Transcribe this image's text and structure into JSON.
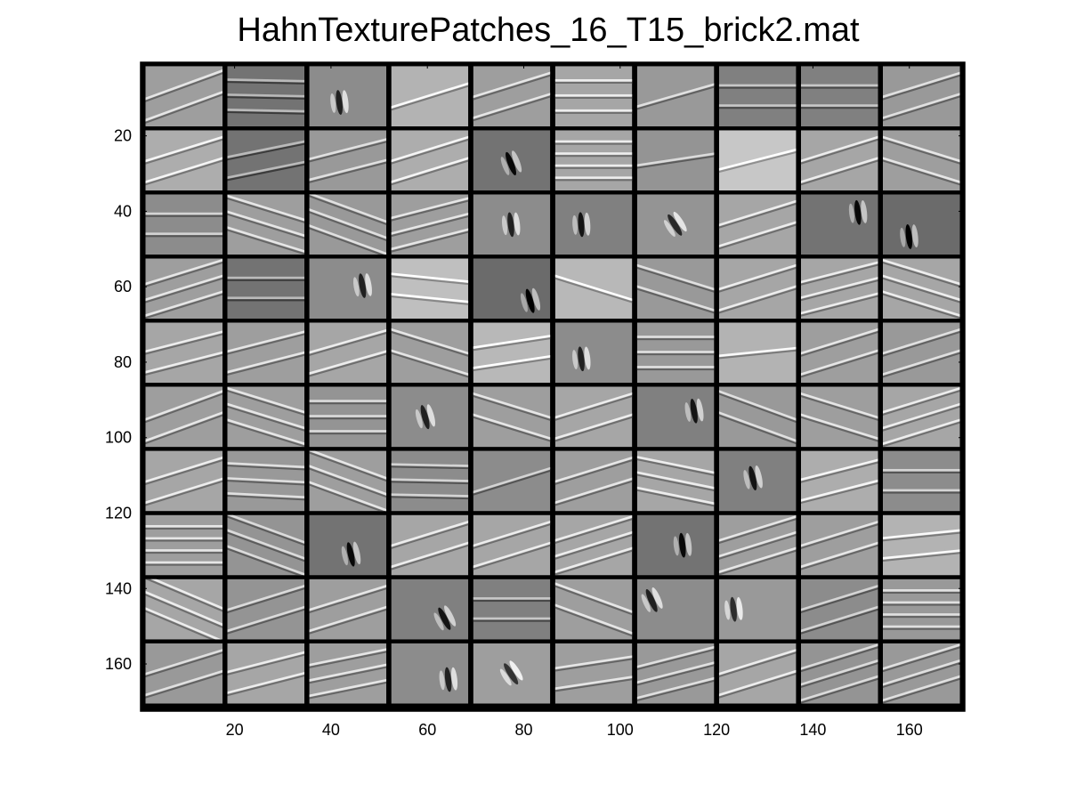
{
  "chart_data": {
    "type": "heatmap",
    "title": "HahnTexturePatches_16_T15_brick2.mat",
    "xlabel": "",
    "ylabel": "",
    "xlim": [
      0.5,
      171.5
    ],
    "ylim": [
      0.5,
      172.5
    ],
    "y_reversed": true,
    "grid": false,
    "legend": "none",
    "colormap": "gray",
    "patch_grid": {
      "rows": 10,
      "cols": 10,
      "patch_width": 16,
      "patch_height": 16,
      "separator": 1
    },
    "x_ticks": [
      20,
      40,
      60,
      80,
      100,
      120,
      140,
      160
    ],
    "x_tick_labels": [
      "20",
      "40",
      "60",
      "80",
      "100",
      "120",
      "140",
      "160"
    ],
    "y_ticks": [
      20,
      40,
      60,
      80,
      100,
      120,
      140,
      160
    ],
    "y_tick_labels": [
      "20",
      "40",
      "60",
      "80",
      "100",
      "120",
      "140",
      "160"
    ],
    "patches": [
      [
        {
          "k": "line",
          "a": -0.35,
          "g": 0.62,
          "p": 2
        },
        {
          "k": "line",
          "a": 0.02,
          "g": 0.45,
          "p": 3
        },
        {
          "k": "gabor",
          "a": 1.45,
          "g": 0.55,
          "cx": 0.4,
          "cy": 0.6
        },
        {
          "k": "line",
          "a": -0.3,
          "g": 0.7,
          "p": 1
        },
        {
          "k": "line",
          "a": -0.3,
          "g": 0.62,
          "p": 2
        },
        {
          "k": "line",
          "a": 0.0,
          "g": 0.65,
          "p": 3
        },
        {
          "k": "line",
          "a": -0.28,
          "g": 0.6,
          "p": 1
        },
        {
          "k": "line",
          "a": 0.0,
          "g": 0.5,
          "p": 2
        },
        {
          "k": "line",
          "a": 0.0,
          "g": 0.5,
          "p": 2
        },
        {
          "k": "line",
          "a": -0.3,
          "g": 0.6,
          "p": 2
        }
      ],
      [
        {
          "k": "line",
          "a": -0.3,
          "g": 0.68,
          "p": 2
        },
        {
          "k": "line",
          "a": -0.2,
          "g": 0.45,
          "p": 2
        },
        {
          "k": "line",
          "a": -0.25,
          "g": 0.6,
          "p": 2
        },
        {
          "k": "line",
          "a": -0.3,
          "g": 0.68,
          "p": 2
        },
        {
          "k": "gabor",
          "a": 1.2,
          "g": 0.45,
          "cx": 0.5,
          "cy": 0.55
        },
        {
          "k": "line",
          "a": 0.0,
          "g": 0.65,
          "p": 4
        },
        {
          "k": "line",
          "a": -0.15,
          "g": 0.58,
          "p": 1
        },
        {
          "k": "line",
          "a": -0.25,
          "g": 0.78,
          "p": 1
        },
        {
          "k": "line",
          "a": -0.3,
          "g": 0.65,
          "p": 2
        },
        {
          "k": "line",
          "a": 0.3,
          "g": 0.62,
          "p": 2
        }
      ],
      [
        {
          "k": "line",
          "a": 0.0,
          "g": 0.55,
          "p": 2
        },
        {
          "k": "line",
          "a": 0.3,
          "g": 0.62,
          "p": 3
        },
        {
          "k": "line",
          "a": 0.35,
          "g": 0.6,
          "p": 3
        },
        {
          "k": "line",
          "a": -0.25,
          "g": 0.62,
          "p": 3
        },
        {
          "k": "gabor",
          "a": 1.45,
          "g": 0.55,
          "cx": 0.5,
          "cy": 0.5
        },
        {
          "k": "gabor",
          "a": 1.5,
          "g": 0.5,
          "cx": 0.35,
          "cy": 0.5
        },
        {
          "k": "gabor",
          "a": 1.0,
          "g": 0.58,
          "cx": 0.5,
          "cy": 0.5
        },
        {
          "k": "line",
          "a": -0.3,
          "g": 0.65,
          "p": 2
        },
        {
          "k": "gabor",
          "a": 1.45,
          "g": 0.45,
          "cx": 0.75,
          "cy": 0.3
        },
        {
          "k": "gabor",
          "a": 1.45,
          "g": 0.42,
          "cx": 0.35,
          "cy": 0.7
        }
      ],
      [
        {
          "k": "line",
          "a": -0.3,
          "g": 0.62,
          "p": 3
        },
        {
          "k": "line",
          "a": 0.0,
          "g": 0.45,
          "p": 2
        },
        {
          "k": "gabor",
          "a": 1.4,
          "g": 0.55,
          "cx": 0.7,
          "cy": 0.45
        },
        {
          "k": "line",
          "a": 0.1,
          "g": 0.75,
          "p": 2
        },
        {
          "k": "gabor",
          "a": 1.3,
          "g": 0.42,
          "cx": 0.75,
          "cy": 0.7
        },
        {
          "k": "line",
          "a": 0.3,
          "g": 0.72,
          "p": 1
        },
        {
          "k": "line",
          "a": 0.3,
          "g": 0.6,
          "p": 2
        },
        {
          "k": "line",
          "a": -0.3,
          "g": 0.65,
          "p": 2
        },
        {
          "k": "line",
          "a": -0.25,
          "g": 0.65,
          "p": 3
        },
        {
          "k": "line",
          "a": 0.3,
          "g": 0.65,
          "p": 3
        }
      ],
      [
        {
          "k": "line",
          "a": -0.25,
          "g": 0.65,
          "p": 2
        },
        {
          "k": "line",
          "a": -0.25,
          "g": 0.62,
          "p": 2
        },
        {
          "k": "line",
          "a": -0.28,
          "g": 0.65,
          "p": 2
        },
        {
          "k": "line",
          "a": 0.3,
          "g": 0.62,
          "p": 2
        },
        {
          "k": "line",
          "a": -0.15,
          "g": 0.72,
          "p": 2
        },
        {
          "k": "gabor",
          "a": 1.45,
          "g": 0.55,
          "cx": 0.35,
          "cy": 0.6
        },
        {
          "k": "line",
          "a": 0.0,
          "g": 0.6,
          "p": 3
        },
        {
          "k": "line",
          "a": -0.1,
          "g": 0.7,
          "p": 1
        },
        {
          "k": "line",
          "a": -0.3,
          "g": 0.62,
          "p": 2
        },
        {
          "k": "line",
          "a": -0.3,
          "g": 0.6,
          "p": 2
        }
      ],
      [
        {
          "k": "line",
          "a": -0.35,
          "g": 0.62,
          "p": 2
        },
        {
          "k": "line",
          "a": 0.3,
          "g": 0.62,
          "p": 3
        },
        {
          "k": "line",
          "a": 0.0,
          "g": 0.58,
          "p": 3
        },
        {
          "k": "gabor",
          "a": 1.3,
          "g": 0.55,
          "cx": 0.45,
          "cy": 0.5
        },
        {
          "k": "line",
          "a": 0.3,
          "g": 0.62,
          "p": 2
        },
        {
          "k": "line",
          "a": -0.3,
          "g": 0.65,
          "p": 2
        },
        {
          "k": "gabor",
          "a": 1.4,
          "g": 0.5,
          "cx": 0.75,
          "cy": 0.4
        },
        {
          "k": "line",
          "a": 0.35,
          "g": 0.6,
          "p": 2
        },
        {
          "k": "line",
          "a": 0.3,
          "g": 0.62,
          "p": 2
        },
        {
          "k": "line",
          "a": -0.3,
          "g": 0.65,
          "p": 3
        }
      ],
      [
        {
          "k": "line",
          "a": -0.3,
          "g": 0.65,
          "p": 2
        },
        {
          "k": "line",
          "a": 0.05,
          "g": 0.6,
          "p": 3
        },
        {
          "k": "line",
          "a": 0.35,
          "g": 0.62,
          "p": 3
        },
        {
          "k": "line",
          "a": 0.02,
          "g": 0.55,
          "p": 3
        },
        {
          "k": "line",
          "a": -0.3,
          "g": 0.55,
          "p": 1
        },
        {
          "k": "line",
          "a": -0.3,
          "g": 0.62,
          "p": 2
        },
        {
          "k": "line",
          "a": 0.2,
          "g": 0.65,
          "p": 3
        },
        {
          "k": "gabor",
          "a": 1.35,
          "g": 0.5,
          "cx": 0.45,
          "cy": 0.45
        },
        {
          "k": "line",
          "a": -0.25,
          "g": 0.68,
          "p": 2
        },
        {
          "k": "line",
          "a": 0.0,
          "g": 0.55,
          "p": 2
        }
      ],
      [
        {
          "k": "line",
          "a": 0.0,
          "g": 0.62,
          "p": 4
        },
        {
          "k": "line",
          "a": 0.35,
          "g": 0.58,
          "p": 3
        },
        {
          "k": "gabor",
          "a": 1.35,
          "g": 0.45,
          "cx": 0.55,
          "cy": 0.65
        },
        {
          "k": "line",
          "a": -0.3,
          "g": 0.65,
          "p": 2
        },
        {
          "k": "line",
          "a": -0.3,
          "g": 0.65,
          "p": 2
        },
        {
          "k": "line",
          "a": -0.3,
          "g": 0.65,
          "p": 3
        },
        {
          "k": "gabor",
          "a": 1.45,
          "g": 0.45,
          "cx": 0.6,
          "cy": 0.5
        },
        {
          "k": "line",
          "a": -0.3,
          "g": 0.62,
          "p": 3
        },
        {
          "k": "line",
          "a": -0.3,
          "g": 0.62,
          "p": 2
        },
        {
          "k": "line",
          "a": -0.1,
          "g": 0.7,
          "p": 2
        }
      ],
      [
        {
          "k": "line",
          "a": 0.4,
          "g": 0.65,
          "p": 3
        },
        {
          "k": "line",
          "a": -0.3,
          "g": 0.58,
          "p": 2
        },
        {
          "k": "line",
          "a": -0.3,
          "g": 0.62,
          "p": 2
        },
        {
          "k": "gabor",
          "a": 1.1,
          "g": 0.5,
          "cx": 0.7,
          "cy": 0.65
        },
        {
          "k": "line",
          "a": 0.0,
          "g": 0.5,
          "p": 2
        },
        {
          "k": "line",
          "a": 0.35,
          "g": 0.62,
          "p": 2
        },
        {
          "k": "gabor",
          "a": 1.15,
          "g": 0.55,
          "cx": 0.2,
          "cy": 0.35
        },
        {
          "k": "gabor",
          "a": 1.45,
          "g": 0.6,
          "cx": 0.2,
          "cy": 0.5
        },
        {
          "k": "line",
          "a": -0.3,
          "g": 0.55,
          "p": 2
        },
        {
          "k": "line",
          "a": 0.0,
          "g": 0.6,
          "p": 4
        }
      ],
      [
        {
          "k": "line",
          "a": -0.3,
          "g": 0.6,
          "p": 2
        },
        {
          "k": "line",
          "a": -0.25,
          "g": 0.65,
          "p": 2
        },
        {
          "k": "line",
          "a": -0.2,
          "g": 0.62,
          "p": 3
        },
        {
          "k": "gabor",
          "a": 1.45,
          "g": 0.55,
          "cx": 0.75,
          "cy": 0.6
        },
        {
          "k": "gabor",
          "a": 1.0,
          "g": 0.62,
          "cx": 0.5,
          "cy": 0.5
        },
        {
          "k": "line",
          "a": -0.15,
          "g": 0.62,
          "p": 2
        },
        {
          "k": "line",
          "a": -0.25,
          "g": 0.6,
          "p": 3
        },
        {
          "k": "line",
          "a": -0.3,
          "g": 0.65,
          "p": 2
        },
        {
          "k": "line",
          "a": -0.3,
          "g": 0.58,
          "p": 3
        },
        {
          "k": "line",
          "a": -0.3,
          "g": 0.6,
          "p": 3
        }
      ]
    ]
  }
}
